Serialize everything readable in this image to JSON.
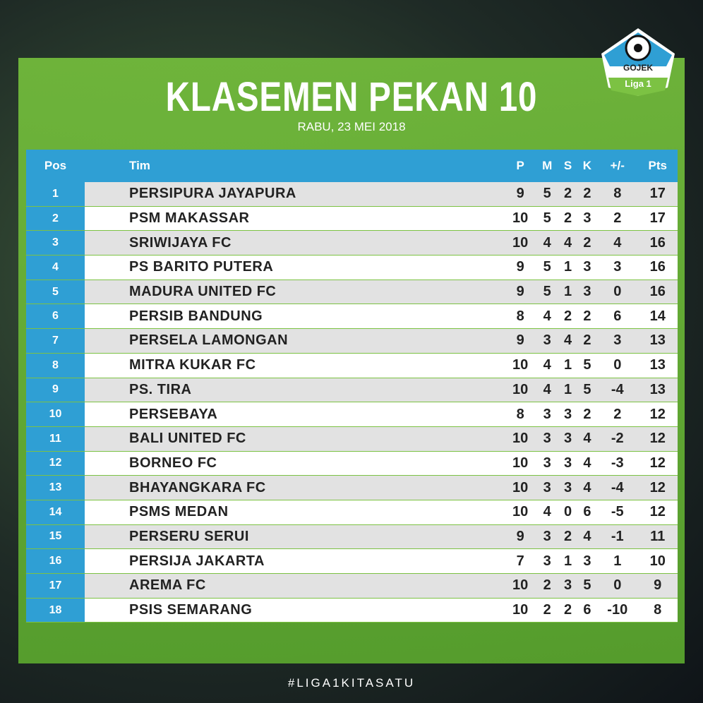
{
  "header": {
    "title": "KLASEMEN PEKAN 10",
    "subtitle": "RABU, 23 MEI 2018"
  },
  "logo": {
    "brand": "GOJEK",
    "league": "Liga 1"
  },
  "table": {
    "columns": [
      "Pos",
      "Tim",
      "P",
      "M",
      "S",
      "K",
      "+/-",
      "Pts"
    ],
    "rows": [
      [
        1,
        "PERSIPURA JAYAPURA",
        9,
        5,
        2,
        2,
        8,
        17
      ],
      [
        2,
        "PSM MAKASSAR",
        10,
        5,
        2,
        3,
        2,
        17
      ],
      [
        3,
        "SRIWIJAYA FC",
        10,
        4,
        4,
        2,
        4,
        16
      ],
      [
        4,
        "PS BARITO PUTERA",
        9,
        5,
        1,
        3,
        3,
        16
      ],
      [
        5,
        "MADURA UNITED FC",
        9,
        5,
        1,
        3,
        0,
        16
      ],
      [
        6,
        "PERSIB BANDUNG",
        8,
        4,
        2,
        2,
        6,
        14
      ],
      [
        7,
        "PERSELA LAMONGAN",
        9,
        3,
        4,
        2,
        3,
        13
      ],
      [
        8,
        "MITRA KUKAR FC",
        10,
        4,
        1,
        5,
        0,
        13
      ],
      [
        9,
        "PS. TIRA",
        10,
        4,
        1,
        5,
        -4,
        13
      ],
      [
        10,
        "PERSEBAYA",
        8,
        3,
        3,
        2,
        2,
        12
      ],
      [
        11,
        "BALI UNITED FC",
        10,
        3,
        3,
        4,
        -2,
        12
      ],
      [
        12,
        "BORNEO FC",
        10,
        3,
        3,
        4,
        -3,
        12
      ],
      [
        13,
        "BHAYANGKARA FC",
        10,
        3,
        3,
        4,
        -4,
        12
      ],
      [
        14,
        "PSMS MEDAN",
        10,
        4,
        0,
        6,
        -5,
        12
      ],
      [
        15,
        "PERSERU SERUI",
        9,
        3,
        2,
        4,
        -1,
        11
      ],
      [
        16,
        "PERSIJA JAKARTA",
        7,
        3,
        1,
        3,
        1,
        10
      ],
      [
        17,
        "AREMA FC",
        10,
        2,
        3,
        5,
        0,
        9
      ],
      [
        18,
        "PSIS SEMARANG",
        10,
        2,
        2,
        6,
        -10,
        8
      ]
    ]
  },
  "footer": {
    "hashtag": "#LIGA1KITASATU"
  }
}
